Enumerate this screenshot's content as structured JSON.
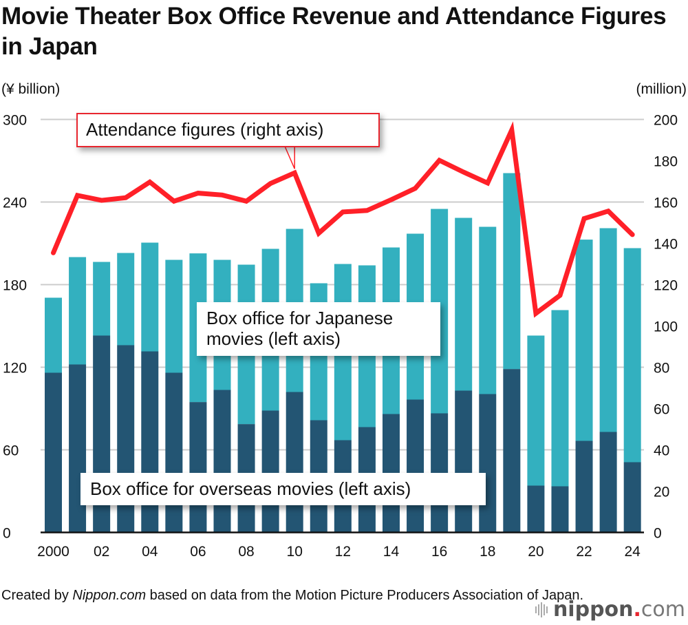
{
  "title": "Movie Theater Box Office Revenue and Attendance Figures in Japan",
  "footer": {
    "prefix": "Created by ",
    "source_name": "Nippon.com",
    "suffix": " based on data from the Motion Picture Producers Association of Japan."
  },
  "logo": {
    "name": "nippon",
    "dot": ".",
    "tld": "com",
    "icon": "sound-bars-icon"
  },
  "colors": {
    "japanese": "#33b0bf",
    "overseas": "#235573",
    "attendance": "#ff2028",
    "grid": "#cccccc",
    "axis": "#111111"
  },
  "chart_data": {
    "type": "bar",
    "stacked": true,
    "title": "Movie Theater Box Office Revenue and Attendance Figures in Japan",
    "x": [
      "2000",
      "2001",
      "2002",
      "2003",
      "2004",
      "2005",
      "2006",
      "2007",
      "2008",
      "2009",
      "2010",
      "2011",
      "2012",
      "2013",
      "2014",
      "2015",
      "2016",
      "2017",
      "2018",
      "2019",
      "2020",
      "2021",
      "2022",
      "2023",
      "2024"
    ],
    "x_tick_labels": [
      "2000",
      "02",
      "04",
      "06",
      "08",
      "10",
      "12",
      "14",
      "16",
      "18",
      "20",
      "22",
      "24"
    ],
    "left_axis": {
      "label": "(¥ billion)",
      "range": [
        0,
        300
      ],
      "ticks": [
        0,
        60,
        120,
        180,
        240,
        300
      ]
    },
    "right_axis": {
      "label": "(million)",
      "range": [
        0,
        200
      ],
      "ticks": [
        0,
        20,
        40,
        60,
        80,
        100,
        120,
        140,
        160,
        180,
        200
      ]
    },
    "grid": true,
    "series": [
      {
        "name": "Box office for overseas movies (left axis)",
        "type": "bar",
        "axis": "left",
        "values": [
          116,
          122,
          143,
          136,
          131.5,
          116,
          94.7,
          103.5,
          78.7,
          88.5,
          102,
          81.5,
          67,
          76.5,
          86,
          96.5,
          86.5,
          103,
          100.5,
          118.7,
          34,
          33.5,
          66.5,
          73,
          51
        ]
      },
      {
        "name": "Box office for Japanese movies (left axis)",
        "type": "bar",
        "axis": "left",
        "values": [
          54.5,
          78,
          53.5,
          67,
          79,
          82,
          108,
          94.5,
          115.8,
          117.5,
          118.5,
          99.5,
          128,
          117.5,
          121,
          120.5,
          148.5,
          125.5,
          121.5,
          142.3,
          109,
          128,
          146.2,
          148,
          155.5
        ]
      },
      {
        "name": "Attendance figures (right axis)",
        "type": "line",
        "axis": "right",
        "values": [
          135.4,
          163.2,
          160.8,
          162.1,
          169.7,
          160.4,
          164.3,
          163.4,
          160.4,
          169.0,
          174.1,
          144.9,
          155.2,
          155.9,
          161.1,
          166.6,
          180.2,
          174.5,
          169.2,
          194.9,
          106.1,
          114.8,
          152.0,
          155.6,
          144.2
        ]
      }
    ],
    "annotations": [
      {
        "id": "attendance",
        "text": "Attendance figures (right axis)",
        "points_to": "2010"
      },
      {
        "id": "japanese",
        "text": "Box office for Japanese movies (left axis)"
      },
      {
        "id": "overseas",
        "text": "Box office for overseas movies (left axis)"
      }
    ]
  }
}
